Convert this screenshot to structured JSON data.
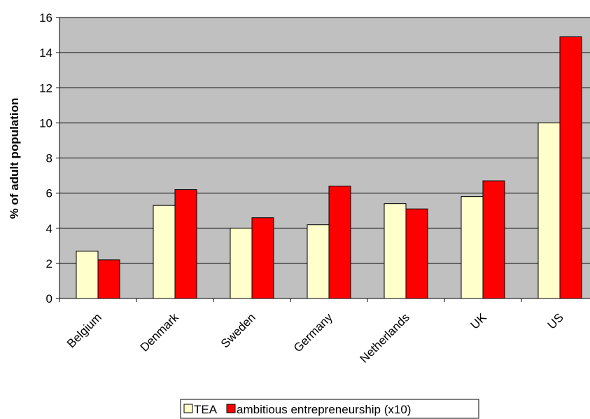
{
  "chart_data": {
    "type": "bar",
    "categories": [
      "Belgium",
      "Denmark",
      "Sweden",
      "Germany",
      "Netherlands",
      "UK",
      "US"
    ],
    "series": [
      {
        "name": "TEA",
        "color": "#ffffcc",
        "values": [
          2.7,
          5.3,
          4.0,
          4.2,
          5.4,
          5.8,
          10.0
        ]
      },
      {
        "name": "ambitious entrepreneurship (x10)",
        "color": "#ff0000",
        "values": [
          2.2,
          6.2,
          4.6,
          6.4,
          5.1,
          6.7,
          14.9
        ]
      }
    ],
    "xlabel": "",
    "ylabel": "% of adult population",
    "ylim": [
      0,
      16
    ],
    "yticks": [
      0,
      2,
      4,
      6,
      8,
      10,
      12,
      14,
      16
    ],
    "grid": true,
    "plot_background": "#c0c0c0",
    "legend_position": "bottom-center"
  }
}
